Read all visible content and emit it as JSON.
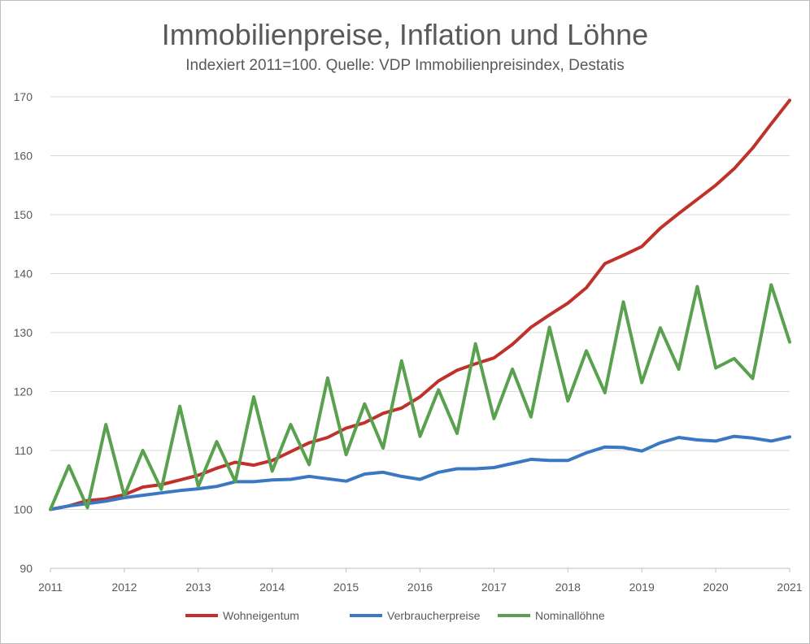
{
  "chart_data": {
    "type": "line",
    "title": "Immobilienpreise, Inflation und Löhne",
    "subtitle": "Indexiert 2011=100. Quelle: VDP Immobilienpreisindex, Destatis",
    "xlabel": "",
    "ylabel": "",
    "xlim": [
      2011,
      2021
    ],
    "ylim": [
      90,
      170
    ],
    "y_ticks": [
      90,
      100,
      110,
      120,
      130,
      140,
      150,
      160,
      170
    ],
    "x_ticks": [
      2011,
      2012,
      2013,
      2014,
      2015,
      2016,
      2017,
      2018,
      2019,
      2020,
      2021
    ],
    "grid": "horizontal",
    "legend_position": "bottom",
    "x": [
      2011,
      2011.25,
      2011.5,
      2011.75,
      2012,
      2012.25,
      2012.5,
      2012.75,
      2013,
      2013.25,
      2013.5,
      2013.75,
      2014,
      2014.25,
      2014.5,
      2014.75,
      2015,
      2015.25,
      2015.5,
      2015.75,
      2016,
      2016.25,
      2016.5,
      2016.75,
      2017,
      2017.25,
      2017.5,
      2017.75,
      2018,
      2018.25,
      2018.5,
      2018.75,
      2019,
      2019.25,
      2019.5,
      2019.75,
      2020,
      2020.25,
      2020.5,
      2020.75,
      2021
    ],
    "series": [
      {
        "name": "Wohneigentum",
        "color": "#c0312b",
        "values": [
          100.0,
          100.6,
          101.5,
          101.8,
          102.5,
          103.8,
          104.2,
          105.0,
          105.8,
          107.0,
          108.0,
          107.5,
          108.3,
          109.8,
          111.3,
          112.2,
          113.8,
          114.7,
          116.3,
          117.2,
          119.1,
          121.8,
          123.6,
          124.7,
          125.7,
          128.0,
          130.9,
          133.0,
          135.0,
          137.6,
          141.7,
          143.1,
          144.6,
          147.7,
          150.2,
          152.6,
          155.0,
          157.8,
          161.3,
          165.4,
          169.4
        ]
      },
      {
        "name": "Verbraucherpreise",
        "color": "#3a78c3",
        "values": [
          100.0,
          100.6,
          101.0,
          101.4,
          102.0,
          102.4,
          102.8,
          103.2,
          103.5,
          103.9,
          104.7,
          104.7,
          105.0,
          105.1,
          105.6,
          105.2,
          104.8,
          106.0,
          106.3,
          105.6,
          105.1,
          106.3,
          106.9,
          106.9,
          107.1,
          107.8,
          108.5,
          108.3,
          108.3,
          109.6,
          110.6,
          110.5,
          109.9,
          111.3,
          112.2,
          111.8,
          111.6,
          112.4,
          112.1,
          111.6,
          112.3
        ]
      },
      {
        "name": "Nominallöhne",
        "color": "#59a14f",
        "values": [
          100.0,
          107.4,
          100.3,
          114.4,
          102.3,
          110.0,
          103.4,
          117.5,
          103.9,
          111.5,
          104.7,
          119.1,
          106.5,
          114.4,
          107.6,
          122.3,
          109.3,
          117.9,
          110.4,
          125.2,
          112.4,
          120.3,
          112.9,
          128.1,
          115.4,
          123.8,
          115.7,
          130.9,
          118.4,
          126.9,
          119.8,
          135.2,
          121.5,
          130.8,
          123.8,
          137.8,
          124.0,
          125.6,
          122.2,
          138.1,
          128.4
        ]
      }
    ]
  }
}
